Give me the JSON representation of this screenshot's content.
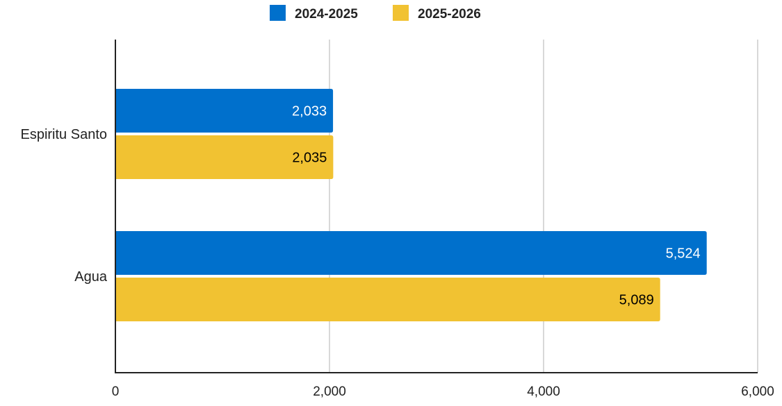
{
  "chart_data": {
    "type": "bar",
    "orientation": "horizontal",
    "categories": [
      "Espiritu Santo",
      "Agua"
    ],
    "series": [
      {
        "name": "2024-2025",
        "values": [
          2033,
          5524
        ],
        "color": "#0070cc",
        "label_color": "#ffffff"
      },
      {
        "name": "2025-2026",
        "values": [
          2035,
          5089
        ],
        "color": "#f1c232",
        "label_color": "#000000"
      }
    ],
    "xlim": [
      0,
      6000
    ],
    "x_ticks": [
      0,
      2000,
      4000,
      6000
    ],
    "grid": true,
    "legend_position": "top",
    "title": "",
    "xlabel": "",
    "ylabel": ""
  }
}
